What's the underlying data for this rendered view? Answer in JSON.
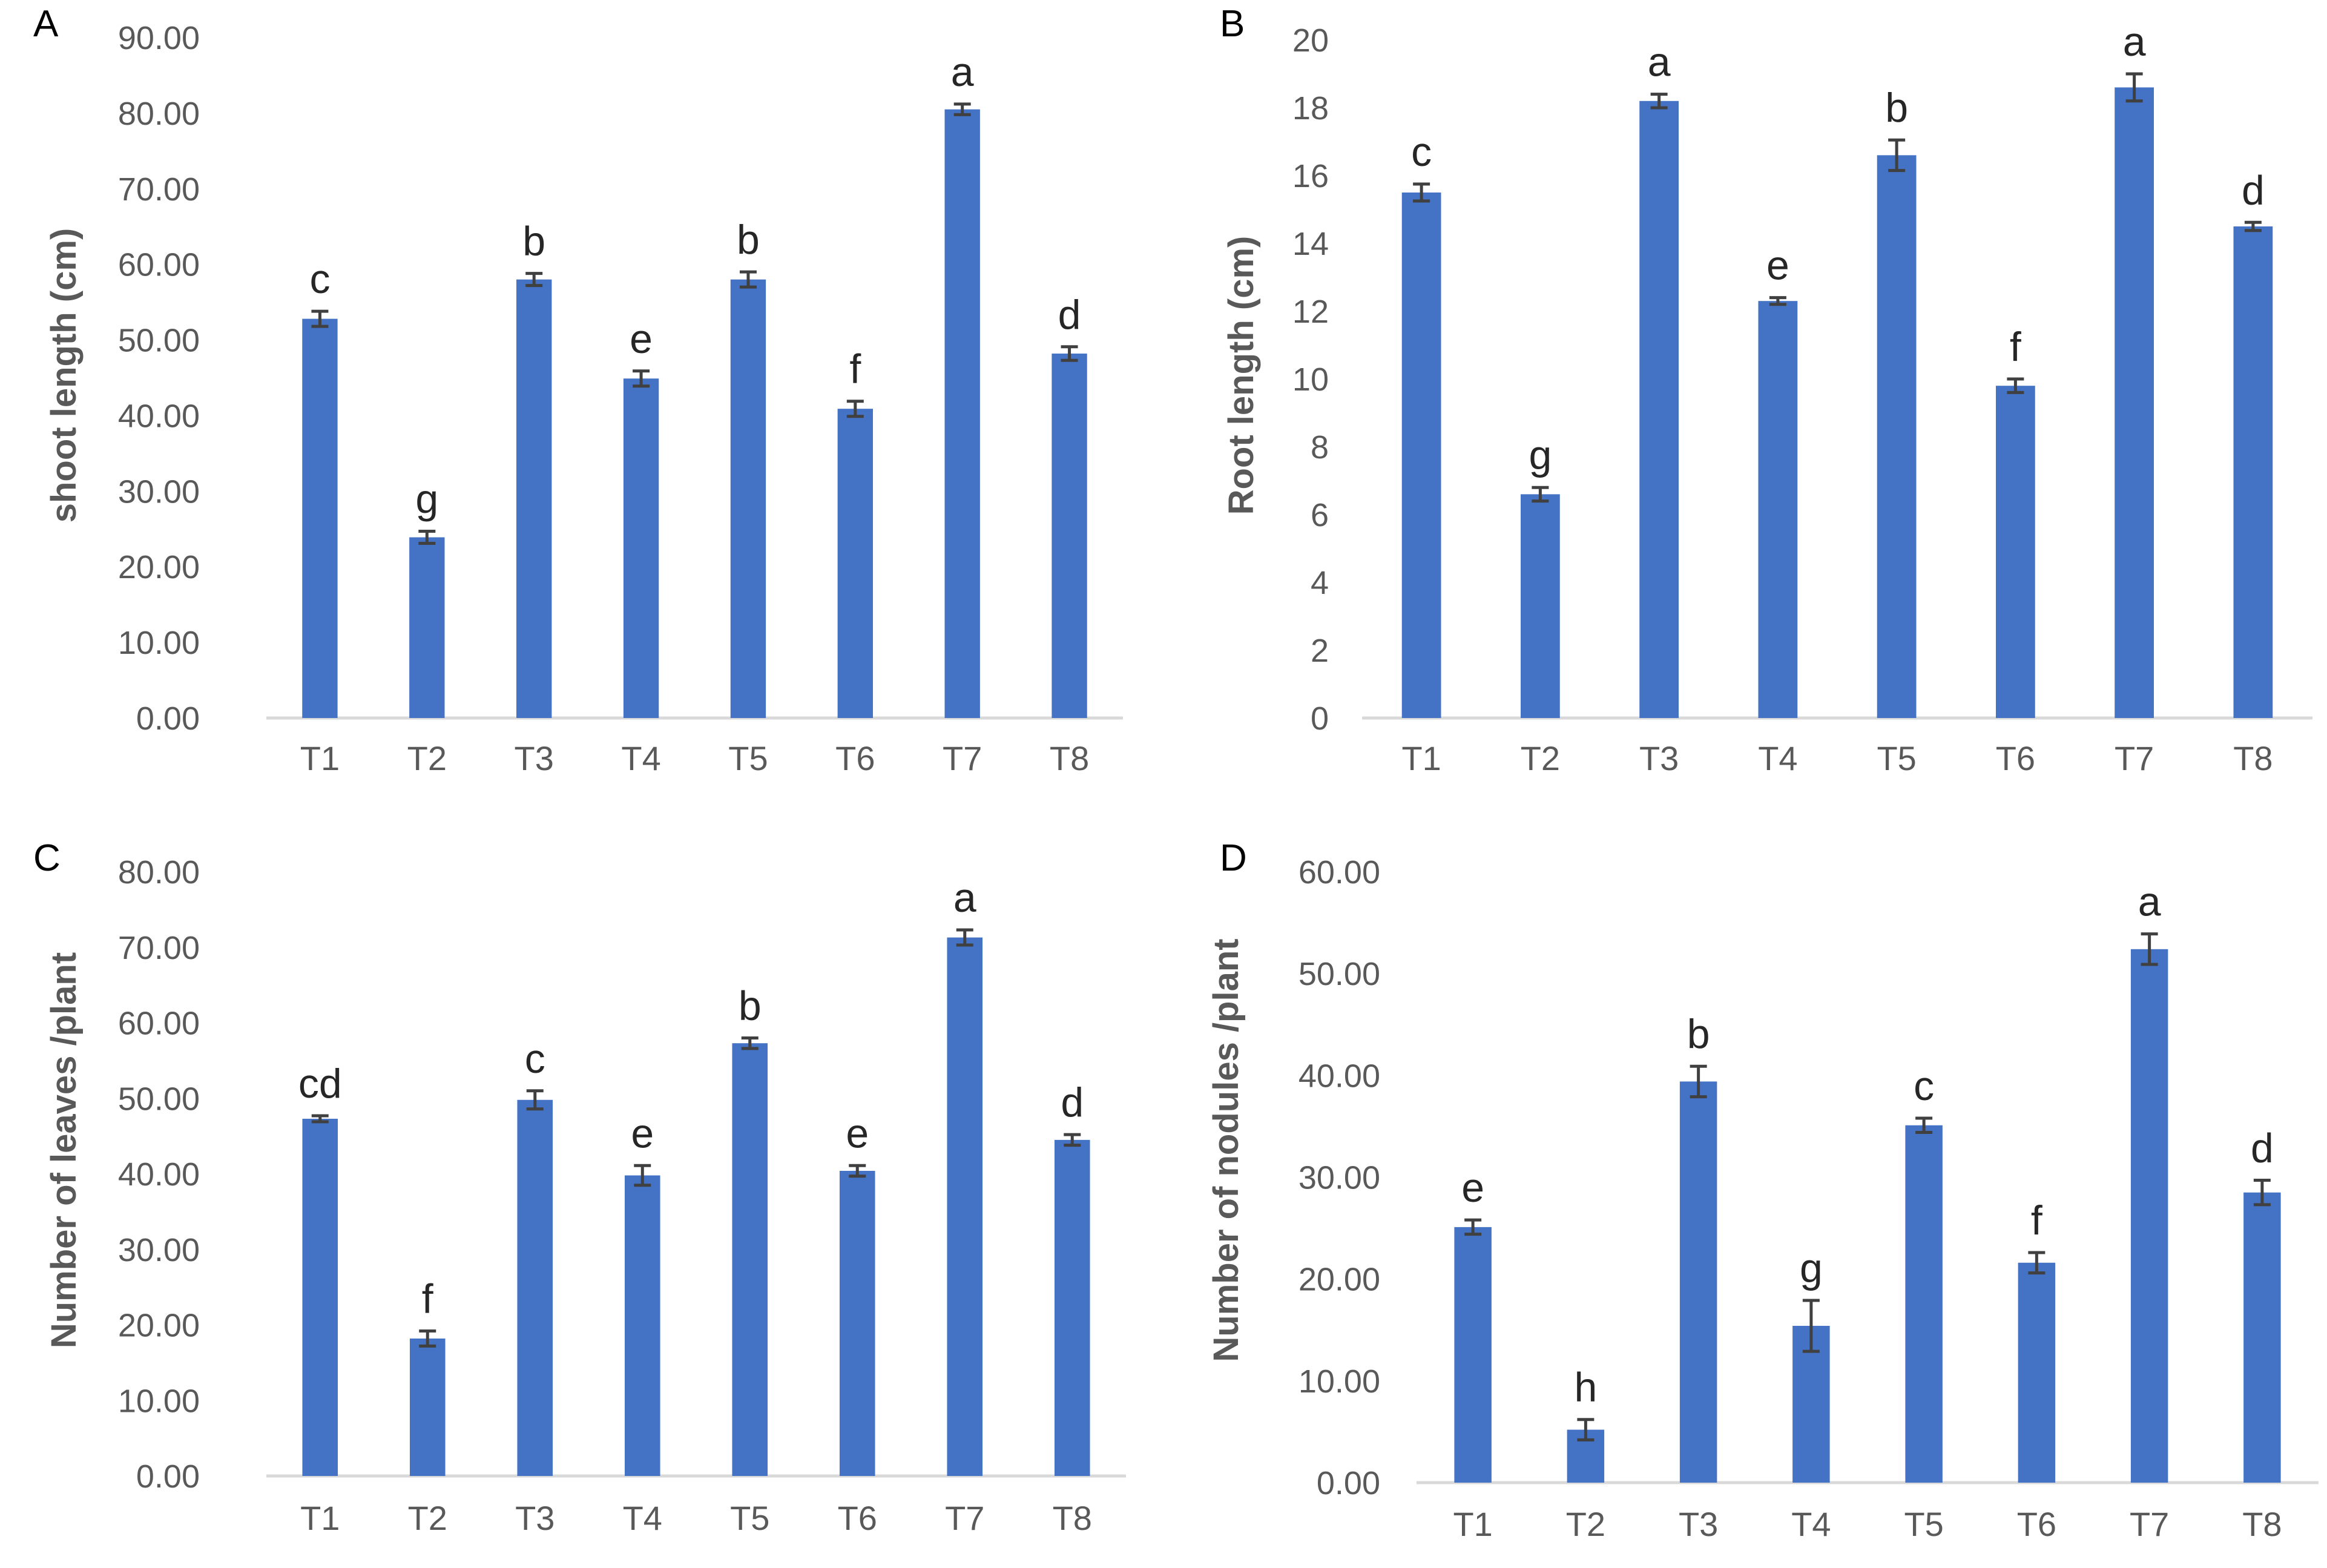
{
  "colors": {
    "bar": "#4472C4",
    "error": "#404040",
    "axis": "#D9D9D9",
    "text": "#595959"
  },
  "chart_data": [
    {
      "type": "bar",
      "panel": "A",
      "title": "",
      "xlabel": "",
      "ylabel": "shoot length (cm)",
      "ylim": [
        0,
        90
      ],
      "yticks": [
        "0.00",
        "10.00",
        "20.00",
        "30.00",
        "40.00",
        "50.00",
        "60.00",
        "70.00",
        "80.00",
        "90.00"
      ],
      "categories": [
        "T1",
        "T2",
        "T3",
        "T4",
        "T5",
        "T6",
        "T7",
        "T8"
      ],
      "values": [
        52.8,
        23.9,
        58.0,
        44.9,
        58.0,
        40.9,
        80.5,
        48.2
      ],
      "errors": [
        1.0,
        0.8,
        0.8,
        1.0,
        1.0,
        1.0,
        0.7,
        0.9
      ],
      "labels": [
        "c",
        "g",
        "b",
        "e",
        "b",
        "f",
        "a",
        "d"
      ],
      "grid": false
    },
    {
      "type": "bar",
      "panel": "B",
      "title": "",
      "xlabel": "",
      "ylabel": "Root length (cm)",
      "ylim": [
        0,
        20
      ],
      "yticks": [
        "0",
        "2",
        "4",
        "6",
        "8",
        "10",
        "12",
        "14",
        "16",
        "18",
        "20"
      ],
      "categories": [
        "T1",
        "T2",
        "T3",
        "T4",
        "T5",
        "T6",
        "T7",
        "T8"
      ],
      "values": [
        15.5,
        6.6,
        18.2,
        12.3,
        16.6,
        9.8,
        18.6,
        14.5
      ],
      "errors": [
        0.25,
        0.2,
        0.2,
        0.1,
        0.45,
        0.2,
        0.4,
        0.12
      ],
      "labels": [
        "c",
        "g",
        "a",
        "e",
        "b",
        "f",
        "a",
        "d"
      ],
      "grid": false
    },
    {
      "type": "bar",
      "panel": "C",
      "title": "",
      "xlabel": "",
      "ylabel": "Number of leaves /plant",
      "ylim": [
        0,
        80
      ],
      "yticks": [
        "0.00",
        "10.00",
        "20.00",
        "30.00",
        "40.00",
        "50.00",
        "60.00",
        "70.00",
        "80.00"
      ],
      "categories": [
        "T1",
        "T2",
        "T3",
        "T4",
        "T5",
        "T6",
        "T7",
        "T8"
      ],
      "values": [
        47.3,
        18.2,
        49.8,
        39.8,
        57.3,
        40.4,
        71.3,
        44.5
      ],
      "errors": [
        0.4,
        1.0,
        1.2,
        1.3,
        0.7,
        0.7,
        1.0,
        0.7
      ],
      "labels": [
        "cd",
        "f",
        "c",
        "e",
        "b",
        "e",
        "a",
        "d"
      ],
      "grid": false
    },
    {
      "type": "bar",
      "panel": "D",
      "title": "",
      "xlabel": "",
      "ylabel": "Number of nodules /plant",
      "ylim": [
        0,
        60
      ],
      "yticks": [
        "0.00",
        "10.00",
        "20.00",
        "30.00",
        "40.00",
        "50.00",
        "60.00"
      ],
      "categories": [
        "T1",
        "T2",
        "T3",
        "T4",
        "T5",
        "T6",
        "T7",
        "T8"
      ],
      "values": [
        25.1,
        5.2,
        39.4,
        15.4,
        35.1,
        21.6,
        52.4,
        28.5
      ],
      "errors": [
        0.7,
        1.0,
        1.5,
        2.5,
        0.7,
        1.0,
        1.5,
        1.2
      ],
      "labels": [
        "e",
        "h",
        "b",
        "g",
        "c",
        "f",
        "a",
        "d"
      ],
      "grid": false
    }
  ]
}
